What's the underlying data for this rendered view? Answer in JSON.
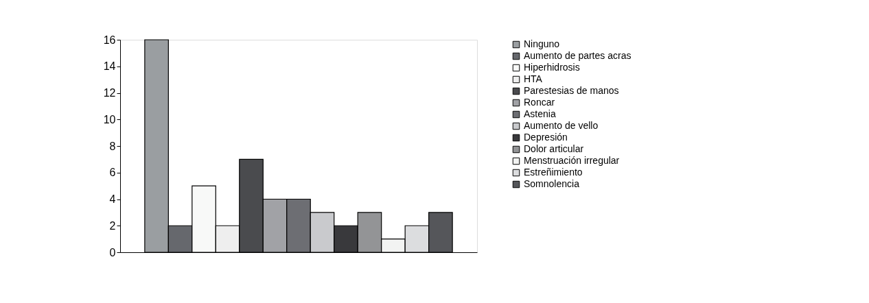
{
  "chart_data": {
    "type": "bar",
    "categories": [
      null
    ],
    "series": [
      {
        "name": "Ninguno",
        "color": "#9a9ea1",
        "values": [
          16
        ]
      },
      {
        "name": "Aumento de partes acras",
        "color": "#66686d",
        "values": [
          2
        ]
      },
      {
        "name": "Hiperhidrosis",
        "color": "#f8f9f8",
        "values": [
          5
        ]
      },
      {
        "name": "HTA",
        "color": "#eeeeee",
        "values": [
          2
        ]
      },
      {
        "name": "Parestesias de manos",
        "color": "#4a4b4e",
        "values": [
          7
        ]
      },
      {
        "name": "Roncar",
        "color": "#a1a2a6",
        "values": [
          4
        ]
      },
      {
        "name": "Astenia",
        "color": "#6d6e73",
        "values": [
          4
        ]
      },
      {
        "name": "Aumento de vello",
        "color": "#c9cacd",
        "values": [
          3
        ]
      },
      {
        "name": "Depresión",
        "color": "#39393c",
        "values": [
          2
        ]
      },
      {
        "name": "Dolor articular",
        "color": "#939496",
        "values": [
          3
        ]
      },
      {
        "name": "Menstruación irregular",
        "color": "#f2f3f2",
        "values": [
          1
        ]
      },
      {
        "name": "Estreñimiento",
        "color": "#dcdddf",
        "values": [
          2
        ]
      },
      {
        "name": "Somnolencia",
        "color": "#55565a",
        "values": [
          3
        ]
      }
    ],
    "ylim": [
      0,
      16
    ],
    "yticks": [
      0,
      2,
      4,
      6,
      8,
      10,
      12,
      14,
      16
    ],
    "tick_labels": "y",
    "legend": "right",
    "grid": false
  }
}
